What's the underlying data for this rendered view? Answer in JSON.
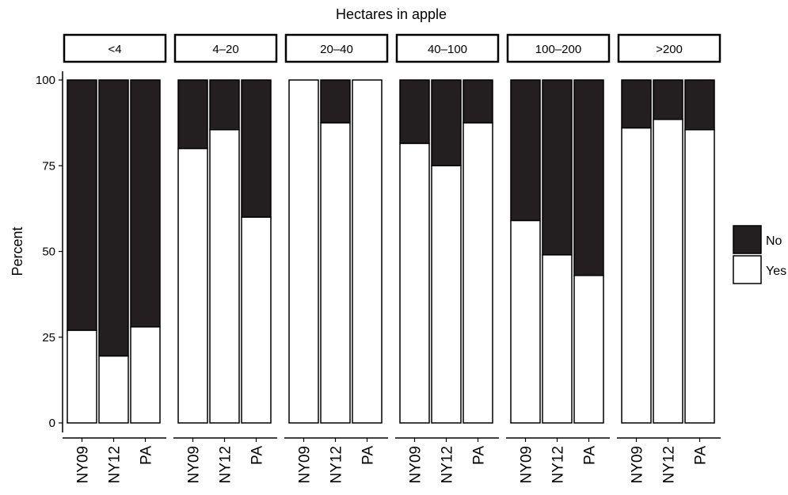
{
  "chart_data": {
    "type": "bar",
    "stacked": true,
    "title": "Hectares in apple",
    "xlabel": "",
    "ylabel": "Percent",
    "ylim": [
      0,
      100
    ],
    "yticks": [
      0,
      25,
      50,
      75,
      100
    ],
    "legend": {
      "placement": "right",
      "entries": [
        {
          "label": "No",
          "color": "#231f20"
        },
        {
          "label": "Yes",
          "color": "#ffffff"
        }
      ]
    },
    "categories": [
      "NY09",
      "NY12",
      "PA"
    ],
    "panels": [
      {
        "label": "<4",
        "yes": [
          27,
          19.5,
          28
        ]
      },
      {
        "label": "4–20",
        "yes": [
          80,
          85.5,
          60
        ]
      },
      {
        "label": "20–40",
        "yes": [
          100,
          87.5,
          100
        ]
      },
      {
        "label": "40–100",
        "yes": [
          81.5,
          75,
          87.5
        ]
      },
      {
        "label": "100–200",
        "yes": [
          59,
          49,
          43
        ]
      },
      {
        "label": ">200",
        "yes": [
          86,
          88.5,
          85.5
        ]
      }
    ]
  }
}
